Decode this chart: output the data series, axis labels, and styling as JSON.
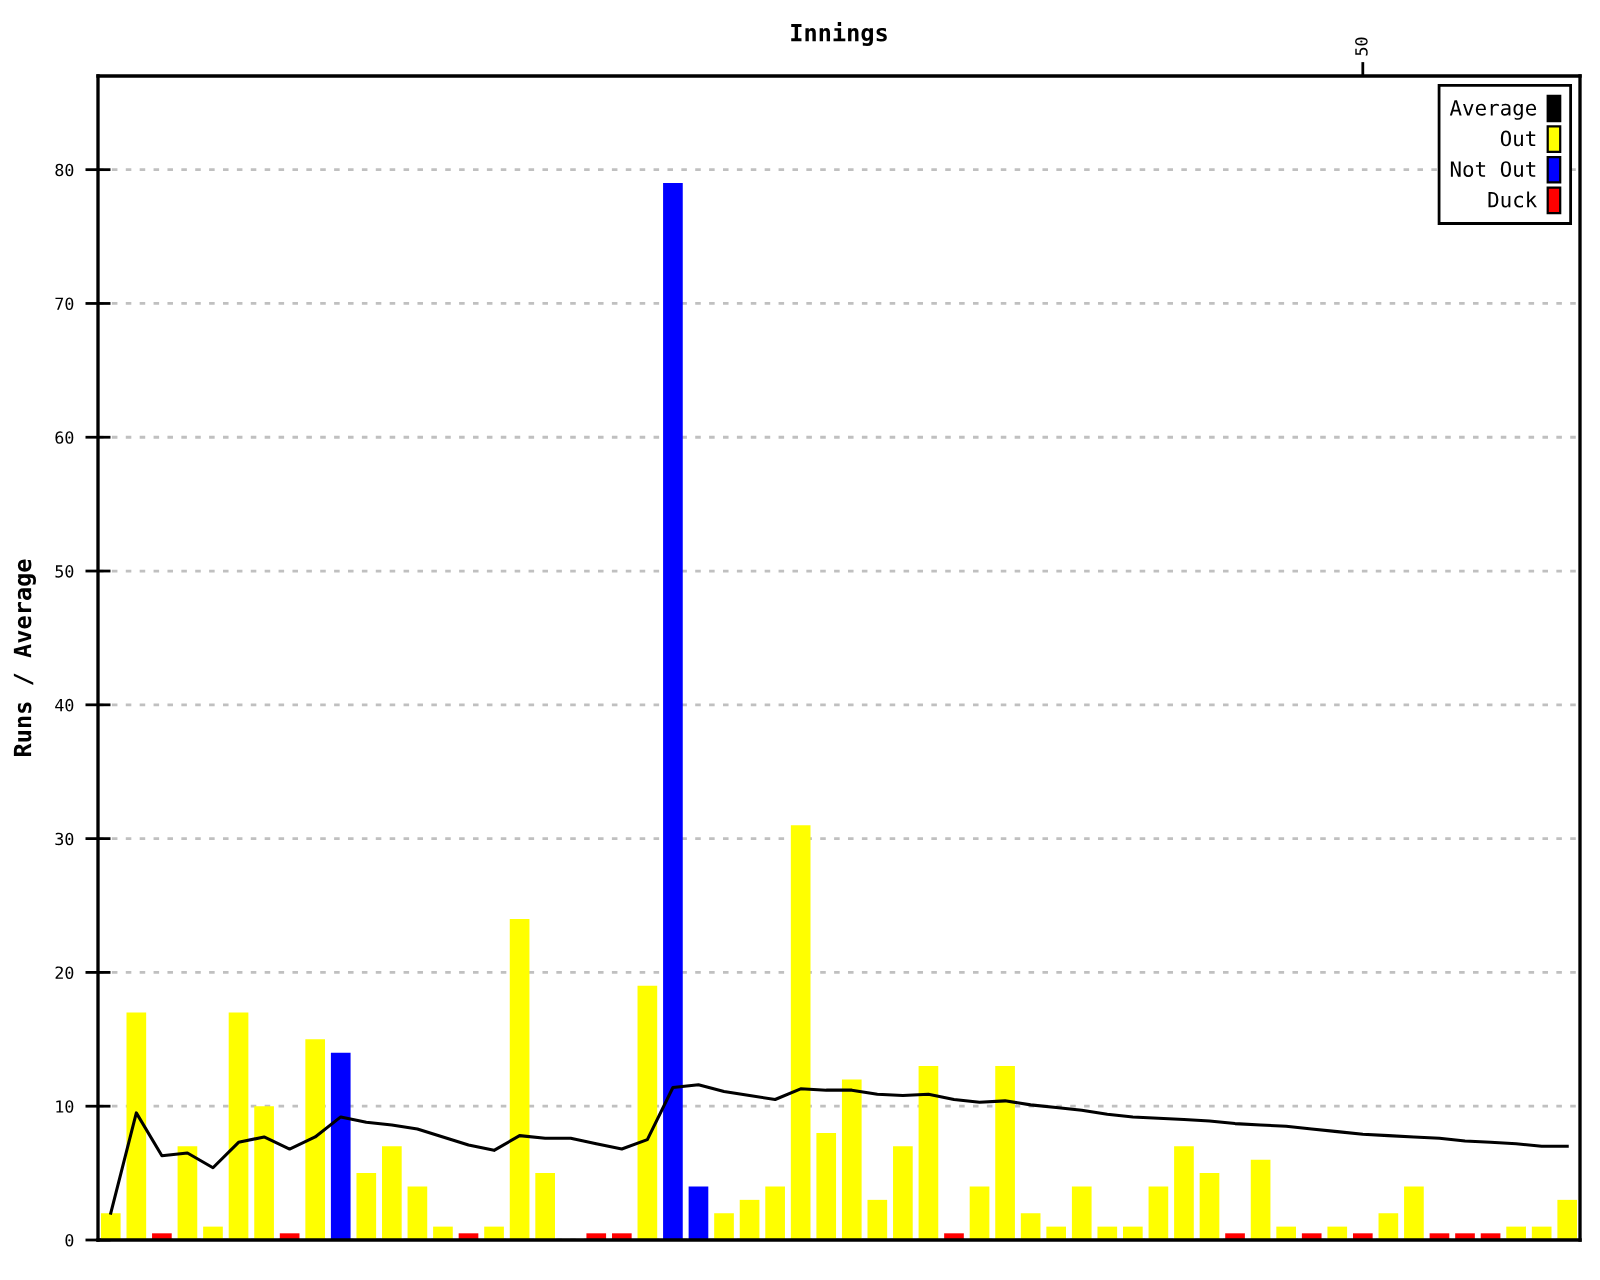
{
  "chart_data": {
    "type": "bar",
    "xlabel": "Innings",
    "ylabel": "Runs / Average",
    "categories": [
      null,
      null,
      null,
      null,
      null,
      null,
      null,
      null,
      null,
      null,
      null,
      null,
      null,
      null,
      null,
      null,
      null,
      null,
      null,
      null,
      null,
      null,
      null,
      null,
      null,
      null,
      null,
      null,
      null,
      null,
      null,
      null,
      null,
      null,
      null,
      null,
      null,
      null,
      null,
      null,
      null,
      null,
      null,
      null,
      null,
      null,
      null,
      null,
      null,
      "50",
      null,
      null,
      null,
      null,
      null,
      null,
      null,
      null
    ],
    "ylim": [
      0,
      87
    ],
    "yticks": [
      0,
      10,
      20,
      30,
      40,
      50,
      60,
      70,
      80
    ],
    "grid": "y",
    "legend": "top right",
    "series": [
      {
        "name": "Average",
        "type": "line",
        "color": "#000000",
        "values": [
          2.0,
          9.5,
          6.3,
          6.5,
          5.4,
          7.3,
          7.7,
          6.8,
          7.7,
          9.2,
          8.8,
          8.6,
          8.3,
          7.7,
          7.1,
          6.7,
          7.8,
          7.6,
          7.6,
          7.2,
          6.8,
          7.5,
          11.4,
          11.6,
          11.1,
          10.8,
          10.5,
          11.3,
          11.2,
          11.2,
          10.9,
          10.8,
          10.9,
          10.5,
          10.3,
          10.4,
          10.1,
          9.9,
          9.7,
          9.4,
          9.2,
          9.1,
          9.0,
          8.9,
          8.7,
          8.6,
          8.5,
          8.3,
          8.1,
          7.9,
          7.8,
          7.7,
          7.6,
          7.4,
          7.3,
          7.2,
          7.0,
          7.0
        ]
      },
      {
        "name": "Out",
        "color": "#ffff00",
        "values": [
          2,
          17,
          null,
          7,
          1,
          17,
          10,
          null,
          15,
          null,
          5,
          7,
          4,
          1,
          null,
          1,
          24,
          5,
          null,
          null,
          null,
          19,
          null,
          null,
          2,
          3,
          4,
          31,
          8,
          12,
          3,
          7,
          13,
          null,
          4,
          13,
          2,
          1,
          4,
          1,
          1,
          4,
          7,
          5,
          null,
          6,
          1,
          null,
          1,
          null,
          2,
          4,
          null,
          null,
          null,
          1,
          1,
          3
        ]
      },
      {
        "name": "Not Out",
        "color": "#0000ff",
        "values": [
          null,
          null,
          null,
          null,
          null,
          null,
          null,
          null,
          null,
          14,
          null,
          null,
          null,
          null,
          null,
          null,
          null,
          null,
          null,
          null,
          null,
          null,
          79,
          4,
          null,
          null,
          null,
          null,
          null,
          null,
          null,
          null,
          null,
          null,
          null,
          null,
          null,
          null,
          null,
          null,
          null,
          null,
          null,
          null,
          null,
          null,
          null,
          null,
          null,
          null,
          null,
          null,
          null,
          null,
          null,
          null,
          null,
          null
        ]
      },
      {
        "name": "Duck",
        "color": "#ff0000",
        "values": [
          null,
          null,
          0.5,
          null,
          null,
          null,
          null,
          0.5,
          null,
          null,
          null,
          null,
          null,
          null,
          0.5,
          null,
          null,
          null,
          null,
          0.5,
          0.5,
          null,
          null,
          null,
          null,
          null,
          null,
          null,
          null,
          null,
          null,
          null,
          null,
          0.5,
          null,
          null,
          null,
          null,
          null,
          null,
          null,
          null,
          null,
          null,
          0.5,
          null,
          null,
          0.5,
          null,
          0.5,
          null,
          null,
          0.5,
          0.5,
          0.5,
          null,
          null,
          null
        ]
      }
    ]
  }
}
